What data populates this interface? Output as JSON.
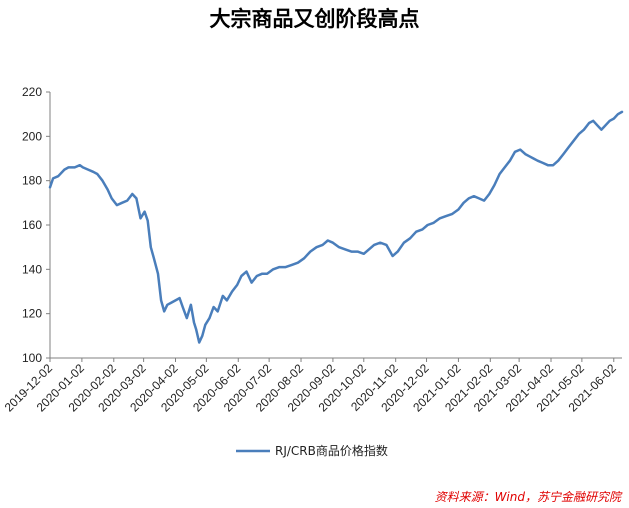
{
  "chart_data": {
    "type": "line",
    "title": "大宗商品又创阶段高点",
    "xlabel": "",
    "ylabel": "",
    "ylim": [
      100,
      220
    ],
    "yticks": [
      100,
      120,
      140,
      160,
      180,
      200,
      220
    ],
    "xlim": [
      "2019-12-02",
      "2021-06-10"
    ],
    "xticks": [
      "2019-12-02",
      "2020-01-02",
      "2020-02-02",
      "2020-03-02",
      "2020-04-02",
      "2020-05-02",
      "2020-06-02",
      "2020-07-02",
      "2020-08-02",
      "2020-09-02",
      "2020-10-02",
      "2020-11-02",
      "2020-12-02",
      "2021-01-02",
      "2021-02-02",
      "2021-03-02",
      "2021-04-02",
      "2021-05-02",
      "2021-06-02"
    ],
    "grid": false,
    "legend_position": "bottom",
    "series": [
      {
        "name": "RJ/CRB商品价格指数",
        "color": "#4a7ebb",
        "points": [
          [
            "2019-12-02",
            177
          ],
          [
            "2019-12-05",
            181
          ],
          [
            "2019-12-10",
            182
          ],
          [
            "2019-12-16",
            185
          ],
          [
            "2019-12-20",
            186
          ],
          [
            "2019-12-26",
            186
          ],
          [
            "2019-12-31",
            187
          ],
          [
            "2020-01-03",
            186
          ],
          [
            "2020-01-08",
            185
          ],
          [
            "2020-01-13",
            184
          ],
          [
            "2020-01-17",
            183
          ],
          [
            "2020-01-22",
            180
          ],
          [
            "2020-01-27",
            176
          ],
          [
            "2020-01-31",
            172
          ],
          [
            "2020-02-05",
            169
          ],
          [
            "2020-02-10",
            170
          ],
          [
            "2020-02-15",
            171
          ],
          [
            "2020-02-20",
            174
          ],
          [
            "2020-02-24",
            172
          ],
          [
            "2020-02-28",
            163
          ],
          [
            "2020-03-03",
            166
          ],
          [
            "2020-03-06",
            162
          ],
          [
            "2020-03-09",
            150
          ],
          [
            "2020-03-12",
            145
          ],
          [
            "2020-03-16",
            138
          ],
          [
            "2020-03-19",
            126
          ],
          [
            "2020-03-22",
            121
          ],
          [
            "2020-03-25",
            124
          ],
          [
            "2020-03-29",
            125
          ],
          [
            "2020-04-02",
            126
          ],
          [
            "2020-04-06",
            127
          ],
          [
            "2020-04-09",
            123
          ],
          [
            "2020-04-13",
            118
          ],
          [
            "2020-04-17",
            124
          ],
          [
            "2020-04-20",
            116
          ],
          [
            "2020-04-22",
            113
          ],
          [
            "2020-04-25",
            107
          ],
          [
            "2020-04-28",
            110
          ],
          [
            "2020-05-01",
            115
          ],
          [
            "2020-05-05",
            118
          ],
          [
            "2020-05-09",
            123
          ],
          [
            "2020-05-13",
            121
          ],
          [
            "2020-05-18",
            128
          ],
          [
            "2020-05-22",
            126
          ],
          [
            "2020-05-27",
            130
          ],
          [
            "2020-06-01",
            133
          ],
          [
            "2020-06-05",
            137
          ],
          [
            "2020-06-10",
            139
          ],
          [
            "2020-06-15",
            134
          ],
          [
            "2020-06-20",
            137
          ],
          [
            "2020-06-25",
            138
          ],
          [
            "2020-06-30",
            138
          ],
          [
            "2020-07-06",
            140
          ],
          [
            "2020-07-12",
            141
          ],
          [
            "2020-07-18",
            141
          ],
          [
            "2020-07-24",
            142
          ],
          [
            "2020-07-30",
            143
          ],
          [
            "2020-08-05",
            145
          ],
          [
            "2020-08-11",
            148
          ],
          [
            "2020-08-17",
            150
          ],
          [
            "2020-08-23",
            151
          ],
          [
            "2020-08-28",
            153
          ],
          [
            "2020-09-02",
            152
          ],
          [
            "2020-09-08",
            150
          ],
          [
            "2020-09-14",
            149
          ],
          [
            "2020-09-20",
            148
          ],
          [
            "2020-09-26",
            148
          ],
          [
            "2020-10-02",
            147
          ],
          [
            "2020-10-07",
            149
          ],
          [
            "2020-10-12",
            151
          ],
          [
            "2020-10-18",
            152
          ],
          [
            "2020-10-24",
            151
          ],
          [
            "2020-10-30",
            146
          ],
          [
            "2020-11-04",
            148
          ],
          [
            "2020-11-10",
            152
          ],
          [
            "2020-11-16",
            154
          ],
          [
            "2020-11-22",
            157
          ],
          [
            "2020-11-28",
            158
          ],
          [
            "2020-12-03",
            160
          ],
          [
            "2020-12-09",
            161
          ],
          [
            "2020-12-15",
            163
          ],
          [
            "2020-12-21",
            164
          ],
          [
            "2020-12-27",
            165
          ],
          [
            "2021-01-02",
            167
          ],
          [
            "2021-01-07",
            170
          ],
          [
            "2021-01-12",
            172
          ],
          [
            "2021-01-17",
            173
          ],
          [
            "2021-01-22",
            172
          ],
          [
            "2021-01-27",
            171
          ],
          [
            "2021-02-01",
            174
          ],
          [
            "2021-02-06",
            178
          ],
          [
            "2021-02-11",
            183
          ],
          [
            "2021-02-16",
            186
          ],
          [
            "2021-02-21",
            189
          ],
          [
            "2021-02-26",
            193
          ],
          [
            "2021-03-03",
            194
          ],
          [
            "2021-03-08",
            192
          ],
          [
            "2021-03-12",
            191
          ],
          [
            "2021-03-16",
            190
          ],
          [
            "2021-03-20",
            189
          ],
          [
            "2021-03-25",
            188
          ],
          [
            "2021-03-30",
            187
          ],
          [
            "2021-04-04",
            187
          ],
          [
            "2021-04-09",
            189
          ],
          [
            "2021-04-14",
            192
          ],
          [
            "2021-04-19",
            195
          ],
          [
            "2021-04-24",
            198
          ],
          [
            "2021-04-29",
            201
          ],
          [
            "2021-05-04",
            203
          ],
          [
            "2021-05-09",
            206
          ],
          [
            "2021-05-13",
            207
          ],
          [
            "2021-05-17",
            205
          ],
          [
            "2021-05-21",
            203
          ],
          [
            "2021-05-25",
            205
          ],
          [
            "2021-05-29",
            207
          ],
          [
            "2021-06-02",
            208
          ],
          [
            "2021-06-06",
            210
          ],
          [
            "2021-06-10",
            211
          ]
        ]
      }
    ]
  },
  "source_note": "资料来源：Wind，苏宁金融研究院"
}
